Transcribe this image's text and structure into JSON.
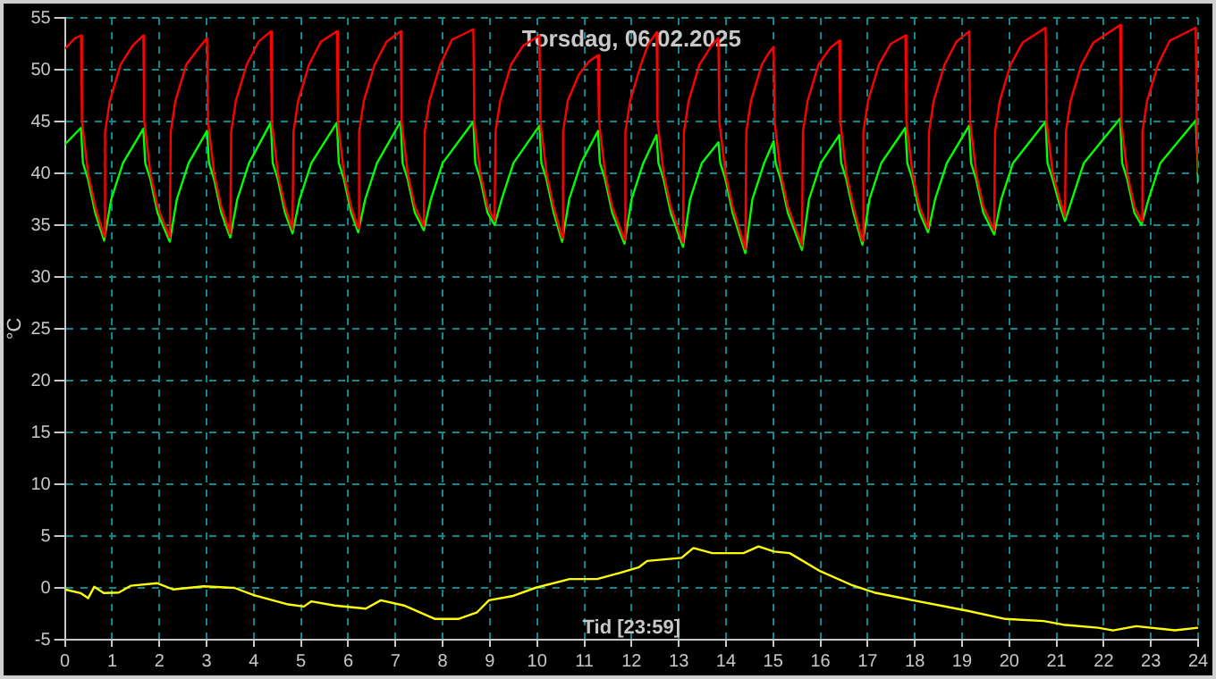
{
  "chart_data": {
    "type": "line",
    "title": "Torsdag, 06.02.2025",
    "xlabel": "Tid [23:59]",
    "ylabel": "°C",
    "xlim": [
      0,
      24
    ],
    "xticks": [
      0,
      1,
      2,
      3,
      4,
      5,
      6,
      7,
      8,
      9,
      10,
      11,
      12,
      13,
      14,
      15,
      16,
      17,
      18,
      19,
      20,
      21,
      22,
      23,
      24
    ],
    "ylim": [
      -5,
      55
    ],
    "yticks": [
      -5,
      0,
      5,
      10,
      15,
      20,
      25,
      30,
      35,
      40,
      45,
      50,
      55
    ],
    "grid": true,
    "legend": false,
    "marker": "none",
    "line_style": "solid",
    "series": [
      {
        "color": "#ff0000",
        "x": [
          0,
          0.2,
          0.34,
          0.36,
          0.49,
          0.64,
          0.83,
          0.85,
          0.95,
          1.18,
          1.43,
          1.66,
          1.68,
          1.81,
          1.96,
          2.22,
          2.24,
          2.34,
          2.57,
          2.82,
          3.01,
          3.03,
          3.16,
          3.31,
          3.5,
          3.52,
          3.62,
          3.85,
          4.1,
          4.36,
          4.38,
          4.51,
          4.66,
          4.82,
          4.84,
          4.94,
          5.17,
          5.42,
          5.76,
          5.78,
          5.91,
          6.06,
          6.21,
          6.23,
          6.33,
          6.56,
          6.81,
          7.11,
          7.13,
          7.26,
          7.41,
          7.6,
          7.62,
          7.72,
          7.95,
          8.2,
          8.65,
          8.67,
          8.8,
          8.95,
          9.1,
          9.12,
          9.22,
          9.45,
          9.7,
          10.05,
          10.07,
          10.2,
          10.35,
          10.53,
          10.55,
          10.65,
          10.88,
          11.1,
          11.29,
          11.31,
          11.44,
          11.59,
          11.85,
          11.87,
          11.97,
          12.2,
          12.35,
          12.53,
          12.55,
          12.68,
          12.83,
          13.09,
          13.11,
          13.21,
          13.44,
          13.69,
          13.84,
          13.86,
          13.99,
          14.14,
          14.41,
          14.43,
          14.53,
          14.76,
          14.92,
          15.01,
          15.03,
          15.16,
          15.31,
          15.61,
          15.63,
          15.73,
          15.96,
          16.21,
          16.4,
          16.42,
          16.55,
          16.7,
          16.89,
          16.91,
          17.01,
          17.24,
          17.49,
          17.8,
          17.82,
          17.95,
          18.1,
          18.28,
          18.3,
          18.4,
          18.63,
          18.88,
          19.15,
          19.17,
          19.3,
          19.45,
          19.68,
          19.7,
          19.8,
          20.03,
          20.28,
          20.77,
          20.79,
          20.92,
          21.07,
          21.18,
          21.2,
          21.3,
          21.53,
          21.78,
          22.35,
          22.37,
          22.5,
          22.65,
          22.8,
          22.82,
          22.92,
          23.15,
          23.4,
          23.95,
          23.97,
          24
        ],
        "values": [
          52,
          53,
          53.3,
          45,
          40,
          36.8,
          33.9,
          44,
          47,
          50.5,
          52.3,
          53.3,
          45,
          40,
          36.8,
          33.8,
          44,
          47,
          50.5,
          52,
          53.05,
          45,
          40,
          36.8,
          34.2,
          44,
          47,
          50.5,
          52.7,
          53.7,
          45,
          40,
          36.8,
          34.6,
          44,
          47,
          50.5,
          52.7,
          53.7,
          45,
          40,
          36.8,
          34.7,
          44,
          47,
          50.5,
          52.7,
          53.7,
          45,
          40,
          36.8,
          34.9,
          44,
          47,
          50.5,
          52.9,
          53.9,
          45,
          40,
          36.8,
          35.4,
          44,
          47,
          50.5,
          52.3,
          53.3,
          45,
          40,
          36.8,
          33.8,
          44,
          47,
          49.5,
          50.8,
          51.4,
          45,
          40,
          36.8,
          33.6,
          44,
          47,
          50.5,
          52.4,
          53.6,
          45,
          40,
          36.8,
          33.3,
          44,
          47,
          50.5,
          52.3,
          53.05,
          45,
          40,
          36.8,
          32.7,
          44,
          47,
          50.5,
          51.7,
          52.2,
          45,
          40,
          36.8,
          33,
          44,
          47,
          50.5,
          52.1,
          52.8,
          45,
          40,
          36.8,
          33.5,
          44,
          47,
          50.5,
          52.5,
          53.3,
          45,
          40,
          36.8,
          34.7,
          44,
          47,
          50.5,
          52.7,
          53.7,
          45,
          40,
          36.8,
          34.5,
          44,
          47,
          50.5,
          52.6,
          54.05,
          45,
          40,
          37.5,
          35.8,
          44,
          47,
          50.5,
          52.6,
          54.3,
          45,
          40,
          36.8,
          35.4,
          44,
          47,
          50.5,
          52.8,
          54.05,
          45,
          40
        ]
      },
      {
        "color": "#00ff00",
        "x": [
          0,
          0.34,
          0.38,
          0.49,
          0.64,
          0.83,
          0.98,
          1.23,
          1.66,
          1.7,
          1.81,
          1.96,
          2.22,
          2.37,
          2.62,
          3.01,
          3.05,
          3.16,
          3.31,
          3.5,
          3.65,
          3.9,
          4.36,
          4.4,
          4.51,
          4.66,
          4.82,
          4.97,
          5.22,
          5.76,
          5.8,
          5.91,
          6.06,
          6.21,
          6.36,
          6.61,
          7.11,
          7.15,
          7.26,
          7.41,
          7.6,
          7.75,
          8.0,
          8.65,
          8.69,
          8.8,
          8.95,
          9.1,
          9.25,
          9.5,
          10.05,
          10.09,
          10.2,
          10.35,
          10.53,
          10.68,
          10.93,
          11.29,
          11.33,
          11.44,
          11.59,
          11.85,
          12.0,
          12.25,
          12.53,
          12.57,
          12.68,
          12.83,
          13.09,
          13.24,
          13.49,
          13.84,
          13.88,
          13.99,
          14.14,
          14.41,
          14.56,
          14.81,
          15.01,
          15.05,
          15.16,
          15.31,
          15.61,
          15.76,
          16.01,
          16.4,
          16.44,
          16.55,
          16.7,
          16.89,
          17.04,
          17.29,
          17.8,
          17.84,
          17.95,
          18.1,
          18.28,
          18.43,
          18.68,
          19.15,
          19.19,
          19.3,
          19.45,
          19.68,
          19.83,
          20.08,
          20.77,
          20.81,
          20.92,
          21.07,
          21.18,
          21.33,
          21.58,
          22.35,
          22.39,
          22.5,
          22.65,
          22.8,
          22.95,
          23.2,
          23.95,
          23.99,
          24
        ],
        "values": [
          42.8,
          44.4,
          41,
          39.4,
          36.2,
          33.5,
          37.5,
          41,
          44.3,
          41,
          39.4,
          36.2,
          33.4,
          37.5,
          41,
          44.1,
          41,
          39.4,
          36.2,
          33.8,
          37.5,
          41,
          44.9,
          41,
          39.4,
          36.2,
          34.2,
          37.5,
          41,
          44.9,
          41,
          39.4,
          36.2,
          34.3,
          37.5,
          41,
          45,
          41,
          39.4,
          36.2,
          34.5,
          37.5,
          41,
          45,
          41,
          39.4,
          36.2,
          35,
          37.5,
          41,
          44.6,
          41,
          39.4,
          36.2,
          33.4,
          37.5,
          41,
          44.1,
          41,
          39.4,
          36.2,
          33.2,
          37.5,
          41,
          43.7,
          41,
          39.4,
          36.2,
          32.9,
          37.5,
          41,
          43,
          41,
          39.4,
          36.2,
          32.3,
          37.5,
          41,
          43.1,
          41,
          39.4,
          36.2,
          32.6,
          37.5,
          41,
          43.7,
          41,
          39.4,
          36.2,
          33.1,
          37.5,
          41,
          44.4,
          41,
          39.4,
          36.2,
          34.3,
          37.5,
          41,
          44.6,
          41,
          39.4,
          36.2,
          34.1,
          37.5,
          41,
          45,
          41,
          39.4,
          36.9,
          35.4,
          37.5,
          41,
          45.3,
          41,
          39.4,
          36.2,
          35,
          37.5,
          41,
          45.1,
          41,
          39
        ]
      },
      {
        "color": "#ffff00",
        "x": [
          0,
          0.33,
          0.49,
          0.62,
          0.82,
          1.14,
          1.39,
          1.96,
          2.29,
          2.94,
          3.59,
          4.0,
          4.73,
          5.06,
          5.22,
          5.71,
          6.37,
          6.69,
          7.18,
          7.84,
          8.33,
          8.73,
          8.98,
          9.47,
          9.96,
          10.69,
          11.27,
          11.76,
          12.16,
          12.33,
          13.06,
          13.31,
          13.71,
          14.37,
          14.69,
          15.02,
          15.35,
          16.0,
          16.65,
          17.14,
          17.96,
          19.1,
          19.92,
          20.73,
          21.14,
          21.88,
          22.2,
          22.69,
          23.51,
          24
        ],
        "values": [
          -0.15,
          -0.5,
          -1,
          0.1,
          -0.5,
          -0.45,
          0.2,
          0.45,
          -0.15,
          0.15,
          0,
          -0.7,
          -1.6,
          -1.8,
          -1.3,
          -1.7,
          -2,
          -1.2,
          -1.7,
          -3,
          -3,
          -2.35,
          -1.2,
          -0.8,
          0,
          0.85,
          0.85,
          1.45,
          2,
          2.6,
          2.9,
          3.85,
          3.35,
          3.35,
          4,
          3.5,
          3.35,
          1.6,
          0.3,
          -0.45,
          -1.2,
          -2.2,
          -3,
          -3.2,
          -3.55,
          -3.85,
          -4.1,
          -3.7,
          -4.1,
          -3.85
        ]
      }
    ]
  }
}
